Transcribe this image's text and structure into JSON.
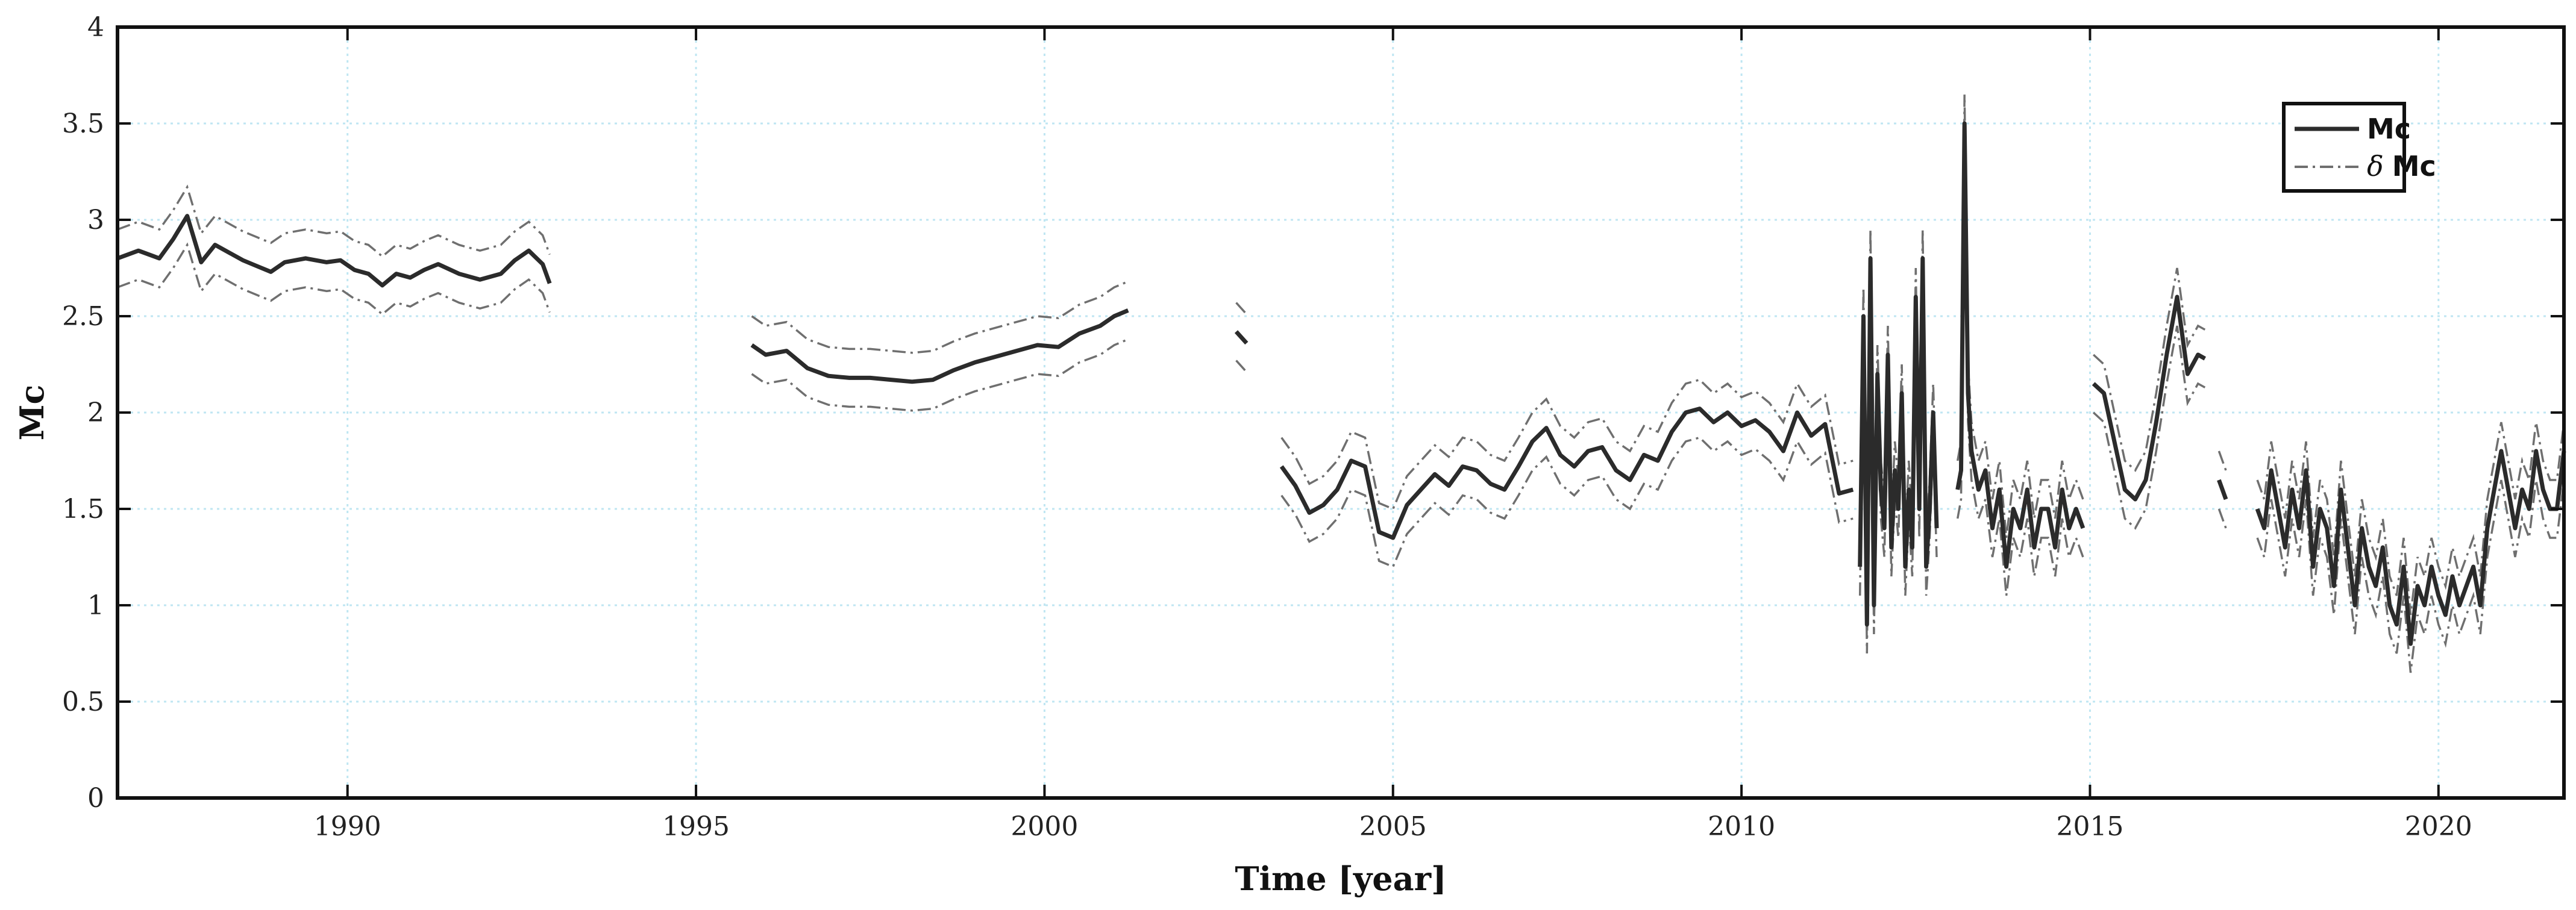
{
  "chart_data": {
    "type": "line",
    "xlabel": "Time [year]",
    "ylabel": "Mc",
    "xlim": [
      1986.7,
      2021.8
    ],
    "ylim": [
      0,
      4
    ],
    "x_ticks": [
      1990,
      1995,
      2000,
      2005,
      2010,
      2015,
      2020
    ],
    "y_ticks": [
      "0",
      "0.5",
      "1",
      "1.5",
      "2",
      "2.5",
      "3",
      "3.5",
      "4"
    ],
    "grid": true,
    "legend_position": "top-right",
    "colors": {
      "mc": "#2b2b2b",
      "delta": "#6f6f6f",
      "grid": "#bfe6f2",
      "frame": "#111111"
    },
    "series": [
      {
        "name": "Mc",
        "segments": [
          [
            [
              1986.7,
              2.8
            ],
            [
              1987.0,
              2.84
            ],
            [
              1987.3,
              2.8
            ],
            [
              1987.5,
              2.9
            ],
            [
              1987.7,
              3.02
            ],
            [
              1987.9,
              2.78
            ],
            [
              1988.1,
              2.87
            ],
            [
              1988.3,
              2.83
            ],
            [
              1988.5,
              2.79
            ],
            [
              1988.7,
              2.76
            ],
            [
              1988.9,
              2.73
            ],
            [
              1989.1,
              2.78
            ],
            [
              1989.4,
              2.8
            ],
            [
              1989.7,
              2.78
            ],
            [
              1989.9,
              2.79
            ],
            [
              1990.1,
              2.74
            ],
            [
              1990.3,
              2.72
            ],
            [
              1990.5,
              2.66
            ],
            [
              1990.7,
              2.72
            ],
            [
              1990.9,
              2.7
            ],
            [
              1991.1,
              2.74
            ],
            [
              1991.3,
              2.77
            ],
            [
              1991.6,
              2.72
            ],
            [
              1991.9,
              2.69
            ],
            [
              1992.2,
              2.72
            ],
            [
              1992.4,
              2.79
            ],
            [
              1992.6,
              2.84
            ],
            [
              1992.8,
              2.77
            ],
            [
              1992.9,
              2.67
            ]
          ],
          [
            [
              1995.8,
              2.35
            ],
            [
              1996.0,
              2.3
            ],
            [
              1996.3,
              2.32
            ],
            [
              1996.6,
              2.23
            ],
            [
              1996.9,
              2.19
            ],
            [
              1997.2,
              2.18
            ],
            [
              1997.5,
              2.18
            ],
            [
              1997.8,
              2.17
            ],
            [
              1998.1,
              2.16
            ],
            [
              1998.4,
              2.17
            ],
            [
              1998.7,
              2.22
            ],
            [
              1999.0,
              2.26
            ],
            [
              1999.3,
              2.29
            ],
            [
              1999.6,
              2.32
            ],
            [
              1999.9,
              2.35
            ],
            [
              2000.2,
              2.34
            ],
            [
              2000.5,
              2.41
            ],
            [
              2000.8,
              2.45
            ],
            [
              2001.0,
              2.5
            ],
            [
              2001.2,
              2.53
            ]
          ],
          [
            [
              2002.75,
              2.42
            ],
            [
              2002.9,
              2.36
            ]
          ],
          [
            [
              2003.4,
              1.72
            ],
            [
              2003.6,
              1.62
            ],
            [
              2003.8,
              1.48
            ],
            [
              2004.0,
              1.52
            ],
            [
              2004.2,
              1.6
            ],
            [
              2004.4,
              1.75
            ],
            [
              2004.6,
              1.72
            ],
            [
              2004.8,
              1.38
            ],
            [
              2005.0,
              1.35
            ],
            [
              2005.2,
              1.52
            ],
            [
              2005.4,
              1.6
            ],
            [
              2005.6,
              1.68
            ],
            [
              2005.8,
              1.62
            ],
            [
              2006.0,
              1.72
            ],
            [
              2006.2,
              1.7
            ],
            [
              2006.4,
              1.63
            ],
            [
              2006.6,
              1.6
            ],
            [
              2006.8,
              1.72
            ],
            [
              2007.0,
              1.85
            ],
            [
              2007.2,
              1.92
            ],
            [
              2007.4,
              1.78
            ],
            [
              2007.6,
              1.72
            ],
            [
              2007.8,
              1.8
            ],
            [
              2008.0,
              1.82
            ],
            [
              2008.2,
              1.7
            ],
            [
              2008.4,
              1.65
            ],
            [
              2008.6,
              1.78
            ],
            [
              2008.8,
              1.75
            ],
            [
              2009.0,
              1.9
            ],
            [
              2009.2,
              2.0
            ],
            [
              2009.4,
              2.02
            ],
            [
              2009.6,
              1.95
            ],
            [
              2009.8,
              2.0
            ],
            [
              2010.0,
              1.93
            ],
            [
              2010.2,
              1.96
            ],
            [
              2010.4,
              1.9
            ],
            [
              2010.6,
              1.8
            ],
            [
              2010.8,
              2.0
            ],
            [
              2011.0,
              1.88
            ],
            [
              2011.2,
              1.94
            ],
            [
              2011.4,
              1.58
            ],
            [
              2011.6,
              1.6
            ]
          ],
          [
            [
              2011.7,
              1.2
            ],
            [
              2011.75,
              2.5
            ],
            [
              2011.8,
              0.9
            ],
            [
              2011.85,
              2.8
            ],
            [
              2011.9,
              1.0
            ],
            [
              2011.95,
              2.2
            ],
            [
              2012.0,
              1.6
            ],
            [
              2012.05,
              1.4
            ],
            [
              2012.1,
              2.3
            ],
            [
              2012.15,
              1.3
            ],
            [
              2012.2,
              1.7
            ],
            [
              2012.25,
              1.5
            ],
            [
              2012.3,
              2.1
            ],
            [
              2012.35,
              1.2
            ],
            [
              2012.4,
              1.6
            ],
            [
              2012.45,
              1.3
            ],
            [
              2012.5,
              2.6
            ],
            [
              2012.55,
              1.5
            ],
            [
              2012.6,
              2.8
            ],
            [
              2012.65,
              1.2
            ],
            [
              2012.7,
              1.5
            ],
            [
              2012.75,
              2.0
            ],
            [
              2012.8,
              1.4
            ]
          ],
          [
            [
              2013.1,
              1.6
            ],
            [
              2013.15,
              1.7
            ],
            [
              2013.2,
              3.5
            ],
            [
              2013.25,
              2.1
            ],
            [
              2013.3,
              1.8
            ],
            [
              2013.4,
              1.6
            ],
            [
              2013.5,
              1.7
            ],
            [
              2013.6,
              1.4
            ],
            [
              2013.7,
              1.6
            ],
            [
              2013.8,
              1.2
            ],
            [
              2013.9,
              1.5
            ],
            [
              2014.0,
              1.4
            ],
            [
              2014.1,
              1.6
            ],
            [
              2014.2,
              1.3
            ],
            [
              2014.3,
              1.5
            ],
            [
              2014.4,
              1.5
            ],
            [
              2014.5,
              1.3
            ],
            [
              2014.6,
              1.6
            ],
            [
              2014.7,
              1.4
            ],
            [
              2014.8,
              1.5
            ],
            [
              2014.9,
              1.4
            ]
          ],
          [
            [
              2015.05,
              2.15
            ],
            [
              2015.2,
              2.1
            ],
            [
              2015.35,
              1.85
            ],
            [
              2015.5,
              1.6
            ],
            [
              2015.65,
              1.55
            ],
            [
              2015.8,
              1.65
            ],
            [
              2015.95,
              1.95
            ],
            [
              2016.1,
              2.3
            ],
            [
              2016.25,
              2.6
            ],
            [
              2016.4,
              2.2
            ],
            [
              2016.55,
              2.3
            ],
            [
              2016.65,
              2.28
            ]
          ],
          [
            [
              2016.85,
              1.65
            ],
            [
              2016.95,
              1.55
            ]
          ],
          [
            [
              2017.4,
              1.5
            ],
            [
              2017.5,
              1.4
            ],
            [
              2017.6,
              1.7
            ],
            [
              2017.7,
              1.5
            ],
            [
              2017.8,
              1.3
            ],
            [
              2017.9,
              1.6
            ],
            [
              2018.0,
              1.4
            ],
            [
              2018.1,
              1.7
            ],
            [
              2018.2,
              1.2
            ],
            [
              2018.3,
              1.5
            ],
            [
              2018.4,
              1.4
            ],
            [
              2018.5,
              1.1
            ],
            [
              2018.6,
              1.6
            ],
            [
              2018.7,
              1.3
            ],
            [
              2018.8,
              1.0
            ],
            [
              2018.9,
              1.4
            ],
            [
              2019.0,
              1.2
            ],
            [
              2019.1,
              1.1
            ],
            [
              2019.2,
              1.3
            ],
            [
              2019.3,
              1.0
            ],
            [
              2019.4,
              0.9
            ],
            [
              2019.5,
              1.2
            ],
            [
              2019.6,
              0.8
            ],
            [
              2019.7,
              1.1
            ],
            [
              2019.8,
              1.0
            ],
            [
              2019.9,
              1.2
            ],
            [
              2020.0,
              1.05
            ],
            [
              2020.1,
              0.95
            ],
            [
              2020.2,
              1.15
            ],
            [
              2020.3,
              1.0
            ],
            [
              2020.4,
              1.1
            ],
            [
              2020.5,
              1.2
            ],
            [
              2020.6,
              1.0
            ],
            [
              2020.7,
              1.4
            ],
            [
              2020.8,
              1.6
            ],
            [
              2020.9,
              1.8
            ],
            [
              2021.0,
              1.6
            ],
            [
              2021.1,
              1.4
            ],
            [
              2021.2,
              1.6
            ],
            [
              2021.3,
              1.5
            ],
            [
              2021.4,
              1.8
            ],
            [
              2021.5,
              1.6
            ],
            [
              2021.6,
              1.5
            ],
            [
              2021.7,
              1.5
            ],
            [
              2021.8,
              1.8
            ]
          ]
        ]
      },
      {
        "name": "δ Mc",
        "offset": 0.15,
        "description_of_band": "dash-dot curves above and below Mc"
      }
    ]
  },
  "legend": {
    "mc_label": "Mc",
    "delta_symbol": "δ",
    "delta_label": "Mc"
  }
}
